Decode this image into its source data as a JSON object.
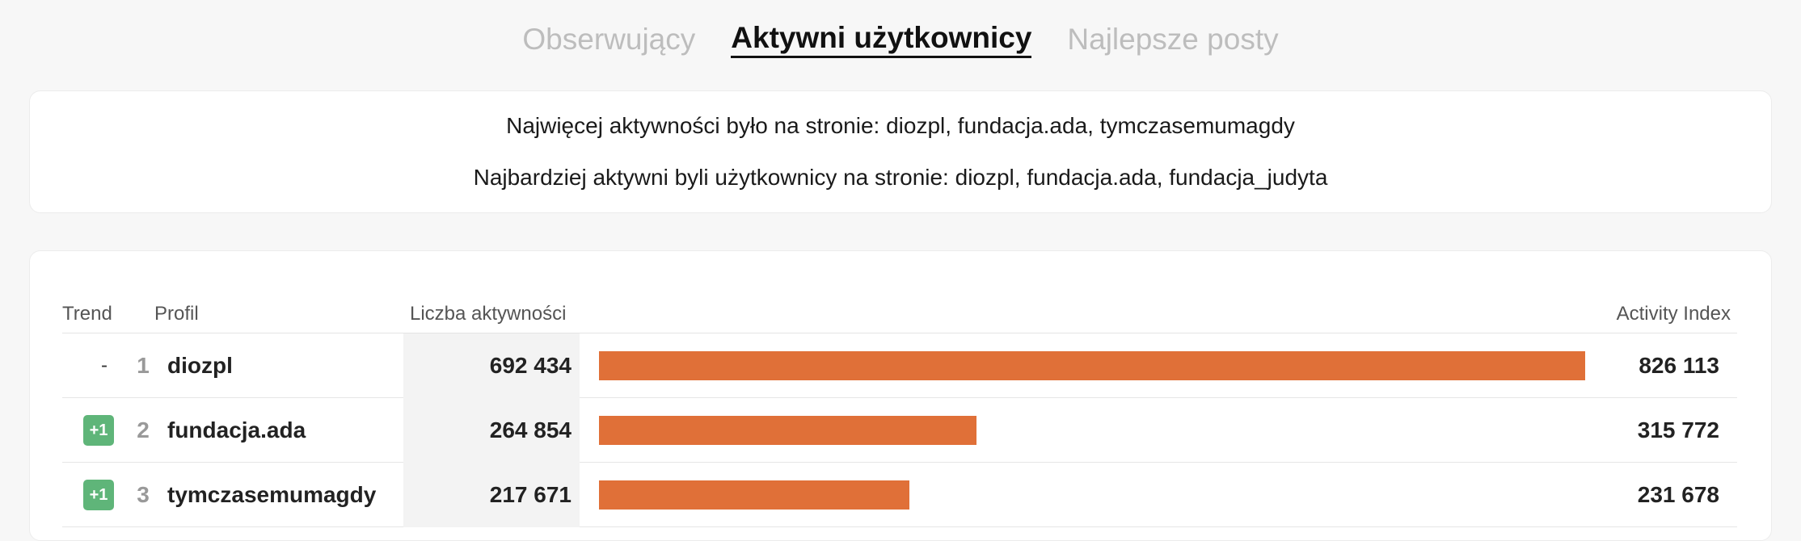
{
  "tabs": [
    {
      "label": "Obserwujący",
      "active": false
    },
    {
      "label": "Aktywni użytkownicy",
      "active": true
    },
    {
      "label": "Najlepsze posty",
      "active": false
    }
  ],
  "summary": {
    "line1": "Najwięcej aktywności było na stronie: diozpl, fundacja.ada, tymczasemumagdy",
    "line2": "Najbardziej aktywni byli użytkownicy na stronie: diozpl, fundacja.ada, fundacja_judyta"
  },
  "table": {
    "headers": {
      "trend": "Trend",
      "profil": "Profil",
      "count": "Liczba aktywności",
      "index": "Activity Index"
    },
    "bar_color": "#e07038",
    "badge_color": "#5fb579",
    "rows": [
      {
        "trend": "-",
        "rank": "1",
        "name": "diozpl",
        "count": "692 434",
        "count_value": 692434,
        "index": "826 113"
      },
      {
        "trend": "+1",
        "rank": "2",
        "name": "fundacja.ada",
        "count": "264 854",
        "count_value": 264854,
        "index": "315 772"
      },
      {
        "trend": "+1",
        "rank": "3",
        "name": "tymczasemumagdy",
        "count": "217 671",
        "count_value": 217671,
        "index": "231 678"
      }
    ]
  }
}
